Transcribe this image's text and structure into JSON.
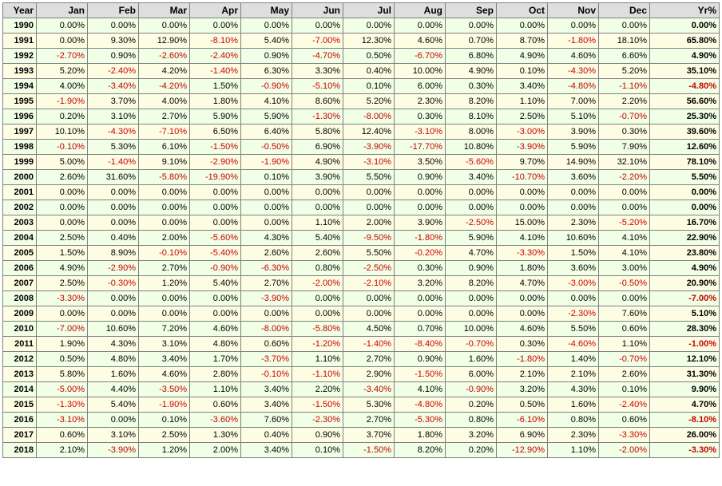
{
  "table": {
    "headers": [
      "Year",
      "Jan",
      "Feb",
      "Mar",
      "Apr",
      "May",
      "Jun",
      "Jul",
      "Aug",
      "Sep",
      "Oct",
      "Nov",
      "Dec",
      "Yr%"
    ],
    "rows": [
      [
        "1990",
        "0.00%",
        "0.00%",
        "0.00%",
        "0.00%",
        "0.00%",
        "0.00%",
        "0.00%",
        "0.00%",
        "0.00%",
        "0.00%",
        "0.00%",
        "0.00%",
        "0.00%"
      ],
      [
        "1991",
        "0.00%",
        "9.30%",
        "12.90%",
        "-8.10%",
        "5.40%",
        "-7.00%",
        "12.30%",
        "4.60%",
        "0.70%",
        "8.70%",
        "-1.80%",
        "18.10%",
        "65.80%"
      ],
      [
        "1992",
        "-2.70%",
        "0.90%",
        "-2.60%",
        "-2.40%",
        "0.90%",
        "-4.70%",
        "0.50%",
        "-6.70%",
        "6.80%",
        "4.90%",
        "4.60%",
        "6.60%",
        "4.90%"
      ],
      [
        "1993",
        "5.20%",
        "-2.40%",
        "4.20%",
        "-1.40%",
        "6.30%",
        "3.30%",
        "0.40%",
        "10.00%",
        "4.90%",
        "0.10%",
        "-4.30%",
        "5.20%",
        "35.10%"
      ],
      [
        "1994",
        "4.00%",
        "-3.40%",
        "-4.20%",
        "1.50%",
        "-0.90%",
        "-5.10%",
        "0.10%",
        "6.00%",
        "0.30%",
        "3.40%",
        "-4.80%",
        "-1.10%",
        "-4.80%"
      ],
      [
        "1995",
        "-1.90%",
        "3.70%",
        "4.00%",
        "1.80%",
        "4.10%",
        "8.60%",
        "5.20%",
        "2.30%",
        "8.20%",
        "1.10%",
        "7.00%",
        "2.20%",
        "56.60%"
      ],
      [
        "1996",
        "0.20%",
        "3.10%",
        "2.70%",
        "5.90%",
        "5.90%",
        "-1.30%",
        "-8.00%",
        "0.30%",
        "8.10%",
        "2.50%",
        "5.10%",
        "-0.70%",
        "25.30%"
      ],
      [
        "1997",
        "10.10%",
        "-4.30%",
        "-7.10%",
        "6.50%",
        "6.40%",
        "5.80%",
        "12.40%",
        "-3.10%",
        "8.00%",
        "-3.00%",
        "3.90%",
        "0.30%",
        "39.60%"
      ],
      [
        "1998",
        "-0.10%",
        "5.30%",
        "6.10%",
        "-1.50%",
        "-0.50%",
        "6.90%",
        "-3.90%",
        "-17.70%",
        "10.80%",
        "-3.90%",
        "5.90%",
        "7.90%",
        "12.60%"
      ],
      [
        "1999",
        "5.00%",
        "-1.40%",
        "9.10%",
        "-2.90%",
        "-1.90%",
        "4.90%",
        "-3.10%",
        "3.50%",
        "-5.60%",
        "9.70%",
        "14.90%",
        "32.10%",
        "78.10%"
      ],
      [
        "2000",
        "2.60%",
        "31.60%",
        "-5.80%",
        "-19.90%",
        "0.10%",
        "3.90%",
        "5.50%",
        "0.90%",
        "3.40%",
        "-10.70%",
        "3.60%",
        "-2.20%",
        "5.50%"
      ],
      [
        "2001",
        "0.00%",
        "0.00%",
        "0.00%",
        "0.00%",
        "0.00%",
        "0.00%",
        "0.00%",
        "0.00%",
        "0.00%",
        "0.00%",
        "0.00%",
        "0.00%",
        "0.00%"
      ],
      [
        "2002",
        "0.00%",
        "0.00%",
        "0.00%",
        "0.00%",
        "0.00%",
        "0.00%",
        "0.00%",
        "0.00%",
        "0.00%",
        "0.00%",
        "0.00%",
        "0.00%",
        "0.00%"
      ],
      [
        "2003",
        "0.00%",
        "0.00%",
        "0.00%",
        "0.00%",
        "0.00%",
        "1.10%",
        "2.00%",
        "3.90%",
        "-2.50%",
        "15.00%",
        "2.30%",
        "-5.20%",
        "16.70%"
      ],
      [
        "2004",
        "2.50%",
        "0.40%",
        "2.00%",
        "-5.60%",
        "4.30%",
        "5.40%",
        "-9.50%",
        "-1.80%",
        "5.90%",
        "4.10%",
        "10.60%",
        "4.10%",
        "22.90%"
      ],
      [
        "2005",
        "1.50%",
        "8.90%",
        "-0.10%",
        "-5.40%",
        "2.60%",
        "2.60%",
        "5.50%",
        "-0.20%",
        "4.70%",
        "-3.30%",
        "1.50%",
        "4.10%",
        "23.80%"
      ],
      [
        "2006",
        "4.90%",
        "-2.90%",
        "2.70%",
        "-0.90%",
        "-6.30%",
        "0.80%",
        "-2.50%",
        "0.30%",
        "0.90%",
        "1.80%",
        "3.60%",
        "3.00%",
        "4.90%"
      ],
      [
        "2007",
        "2.50%",
        "-0.30%",
        "1.20%",
        "5.40%",
        "2.70%",
        "-2.00%",
        "-2.10%",
        "3.20%",
        "8.20%",
        "4.70%",
        "-3.00%",
        "-0.50%",
        "20.90%"
      ],
      [
        "2008",
        "-3.30%",
        "0.00%",
        "0.00%",
        "0.00%",
        "-3.90%",
        "0.00%",
        "0.00%",
        "0.00%",
        "0.00%",
        "0.00%",
        "0.00%",
        "0.00%",
        "-7.00%"
      ],
      [
        "2009",
        "0.00%",
        "0.00%",
        "0.00%",
        "0.00%",
        "0.00%",
        "0.00%",
        "0.00%",
        "0.00%",
        "0.00%",
        "0.00%",
        "-2.30%",
        "7.60%",
        "5.10%"
      ],
      [
        "2010",
        "-7.00%",
        "10.60%",
        "7.20%",
        "4.60%",
        "-8.00%",
        "-5.80%",
        "4.50%",
        "0.70%",
        "10.00%",
        "4.60%",
        "5.50%",
        "0.60%",
        "28.30%"
      ],
      [
        "2011",
        "1.90%",
        "4.30%",
        "3.10%",
        "4.80%",
        "0.60%",
        "-1.20%",
        "-1.40%",
        "-8.40%",
        "-0.70%",
        "0.30%",
        "-4.60%",
        "1.10%",
        "-1.00%"
      ],
      [
        "2012",
        "0.50%",
        "4.80%",
        "3.40%",
        "1.70%",
        "-3.70%",
        "1.10%",
        "2.70%",
        "0.90%",
        "1.60%",
        "-1.80%",
        "1.40%",
        "-0.70%",
        "12.10%"
      ],
      [
        "2013",
        "5.80%",
        "1.60%",
        "4.60%",
        "2.80%",
        "-0.10%",
        "-1.10%",
        "2.90%",
        "-1.50%",
        "6.00%",
        "2.10%",
        "2.10%",
        "2.60%",
        "31.30%"
      ],
      [
        "2014",
        "-5.00%",
        "4.40%",
        "-3.50%",
        "1.10%",
        "3.40%",
        "2.20%",
        "-3.40%",
        "4.10%",
        "-0.90%",
        "3.20%",
        "4.30%",
        "0.10%",
        "9.90%"
      ],
      [
        "2015",
        "-1.30%",
        "5.40%",
        "-1.90%",
        "0.60%",
        "3.40%",
        "-1.50%",
        "5.30%",
        "-4.80%",
        "0.20%",
        "0.50%",
        "1.60%",
        "-2.40%",
        "4.70%"
      ],
      [
        "2016",
        "-3.10%",
        "0.00%",
        "0.10%",
        "-3.60%",
        "7.60%",
        "-2.30%",
        "2.70%",
        "-5.30%",
        "0.80%",
        "-6.10%",
        "0.80%",
        "0.60%",
        "-8.10%"
      ],
      [
        "2017",
        "0.60%",
        "3.10%",
        "2.50%",
        "1.30%",
        "0.40%",
        "0.90%",
        "3.70%",
        "1.80%",
        "3.20%",
        "6.90%",
        "2.30%",
        "-3.30%",
        "26.00%"
      ],
      [
        "2018",
        "2.10%",
        "-3.90%",
        "1.20%",
        "2.00%",
        "3.40%",
        "0.10%",
        "-1.50%",
        "8.20%",
        "0.20%",
        "-12.90%",
        "1.10%",
        "-2.00%",
        "-3.30%"
      ]
    ]
  },
  "colors": {
    "header_bg": "#dedede",
    "row_odd_bg": "#f0ffe6",
    "row_even_bg": "#fdfde4",
    "negative_text": "#cc0000",
    "positive_text": "#000000",
    "border": "#808080"
  }
}
